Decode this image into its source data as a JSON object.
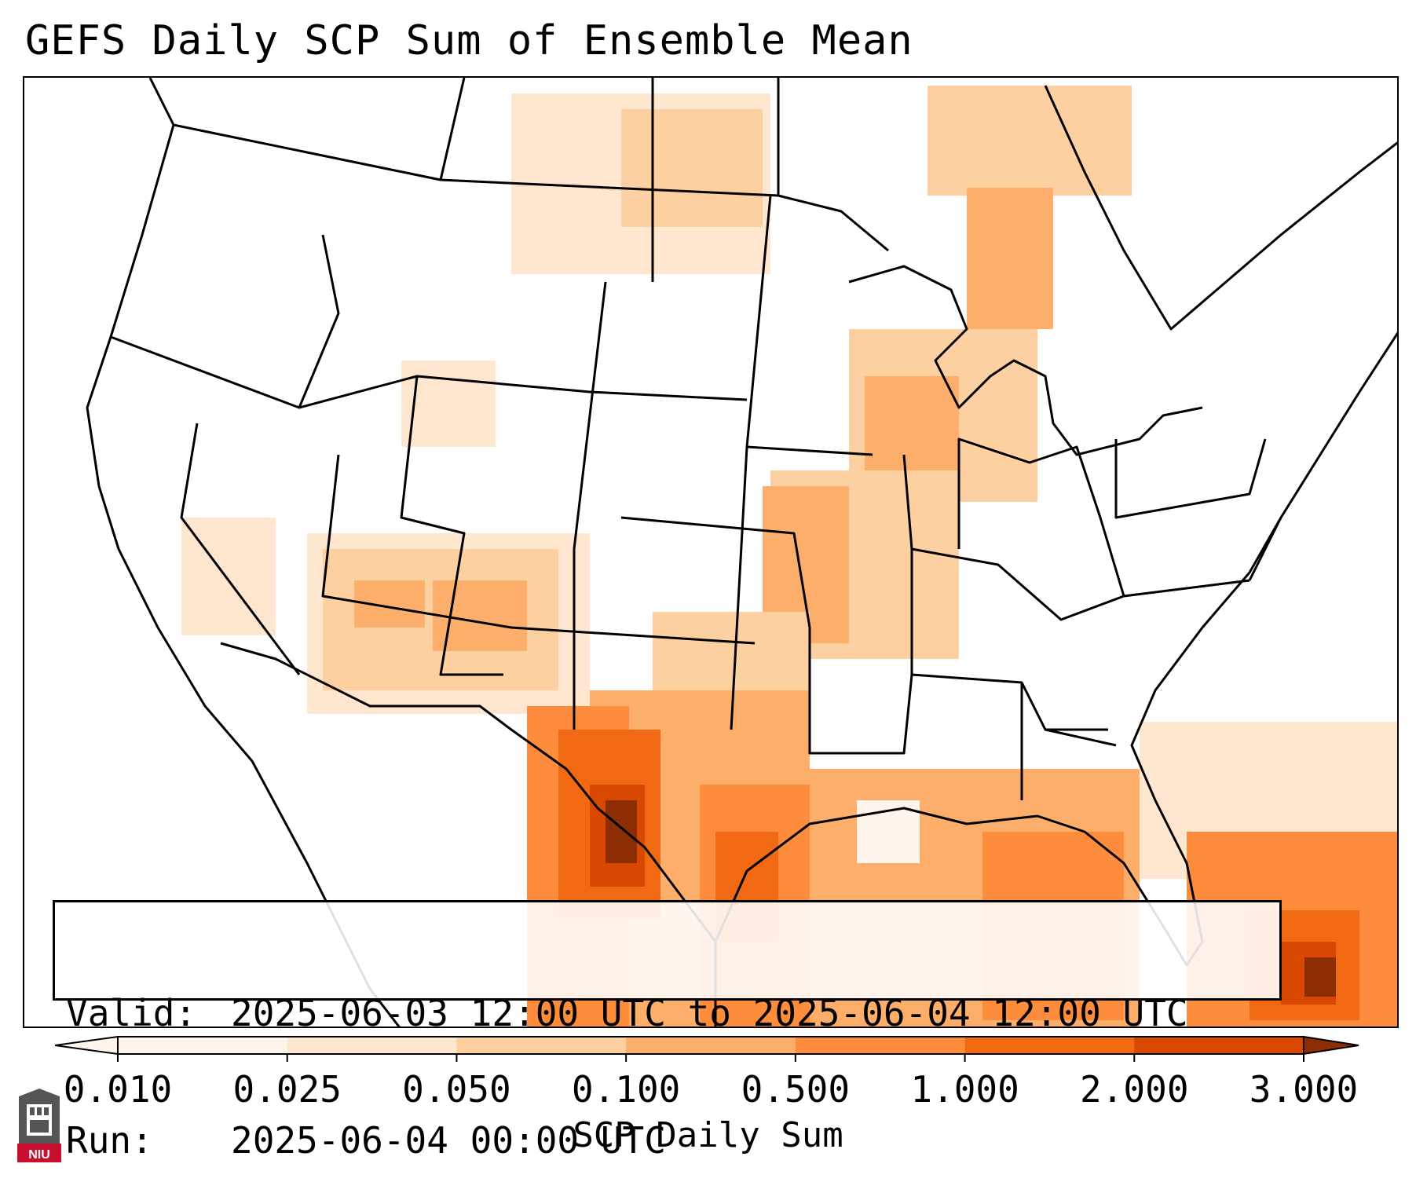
{
  "title": "GEFS Daily SCP Sum of Ensemble Mean",
  "valid_label": "Valid:",
  "valid_value": "2025-06-03 12:00 UTC to 2025-06-04 12:00 UTC",
  "run_label": "Run:",
  "run_value": "2025-06-04 00:00 UTC",
  "colorbar": {
    "label": "SCP Daily Sum",
    "ticks": [
      "0.010",
      "0.025",
      "0.050",
      "0.100",
      "0.500",
      "1.000",
      "2.000",
      "3.000"
    ],
    "colors": [
      "#fff5ec",
      "#fee6cf",
      "#fdd0a2",
      "#fdae6b",
      "#fd8d3c",
      "#f16913",
      "#d94801",
      "#8c2d04"
    ],
    "extend": "both"
  },
  "legend": {
    "levels": [
      {
        "range": "0.010-0.025",
        "color": "#fff5ec"
      },
      {
        "range": "0.025-0.050",
        "color": "#fee6cf"
      },
      {
        "range": "0.050-0.100",
        "color": "#fdd0a2"
      },
      {
        "range": "0.100-0.500",
        "color": "#fdae6b"
      },
      {
        "range": "0.500-1.000",
        "color": "#fd8d3c"
      },
      {
        "range": "1.000-2.000",
        "color": "#f16913"
      },
      {
        "range": "2.000-3.000",
        "color": "#d94801"
      },
      {
        "range": ">3.000",
        "color": "#8c2d04"
      }
    ]
  },
  "logo": {
    "text": "NIU",
    "color": "#c8102e"
  }
}
